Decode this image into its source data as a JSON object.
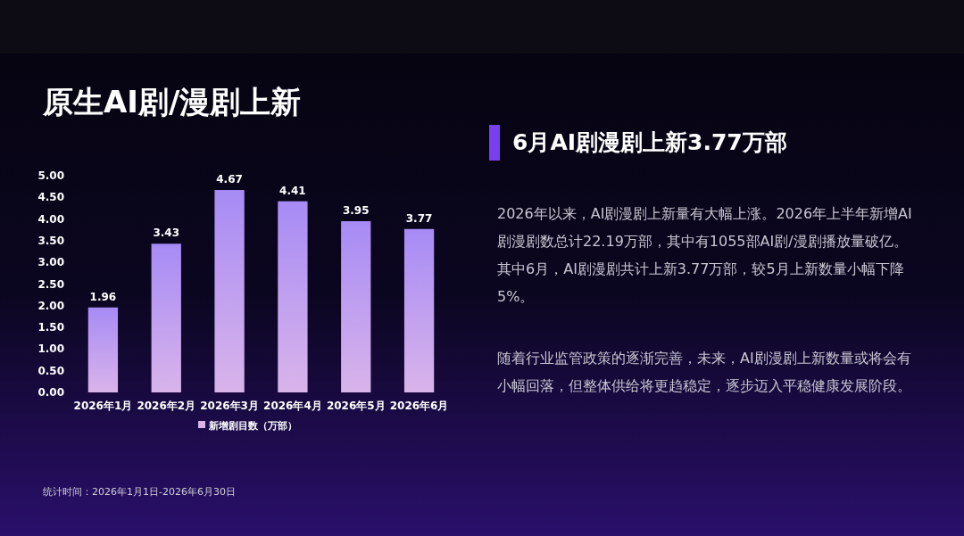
{
  "chart_data": {
    "type": "bar",
    "title": "原生AI剧/漫剧上新",
    "subtitle": "6月AI剧漫剧上新3.77万部",
    "categories": [
      "2026年1月",
      "2026年2月",
      "2026年3月",
      "2026年4月",
      "2026年5月",
      "2026年6月"
    ],
    "series": [
      {
        "name": "新增剧目数（万部）",
        "color": "#d9b4ea",
        "values": [
          1.96,
          3.43,
          4.67,
          4.41,
          3.95,
          3.77
        ]
      }
    ],
    "ylim": [
      0,
      5
    ],
    "yticks": [
      {
        "value": 0,
        "label": "0.00"
      },
      {
        "value": 0.5,
        "label": "0.50"
      },
      {
        "value": 1,
        "label": "1.00"
      },
      {
        "value": 1.5,
        "label": "1.50"
      },
      {
        "value": 2,
        "label": "2.00"
      },
      {
        "value": 2.5,
        "label": "2.50"
      },
      {
        "value": 3,
        "label": "3.00"
      },
      {
        "value": 3.5,
        "label": "3.50"
      },
      {
        "value": 4,
        "label": "4.00"
      },
      {
        "value": 4.5,
        "label": "4.50"
      },
      {
        "value": 5,
        "label": "5.00"
      }
    ],
    "data_labels": true,
    "grid": false,
    "legend": "bottom",
    "annotations": [
      "2026年以来，AI剧漫剧上新量有大幅上涨。2026年上半年新增AI剧漫剧数总计22.19万部，其中有1055部AI剧/漫剧播放量破亿。其中6月，AI剧漫剧共计上新3.77万部，较5月上新数量小幅下降5%。",
      "随着行业监管政策的逐渐完善，未来，AI剧漫剧上新数量或将会有小幅回落，但整体供给将更趋稳定，逐步迈入平稳健康发展阶段。",
      "统计时间：2026年1月1日-2026年6月30日"
    ]
  }
}
